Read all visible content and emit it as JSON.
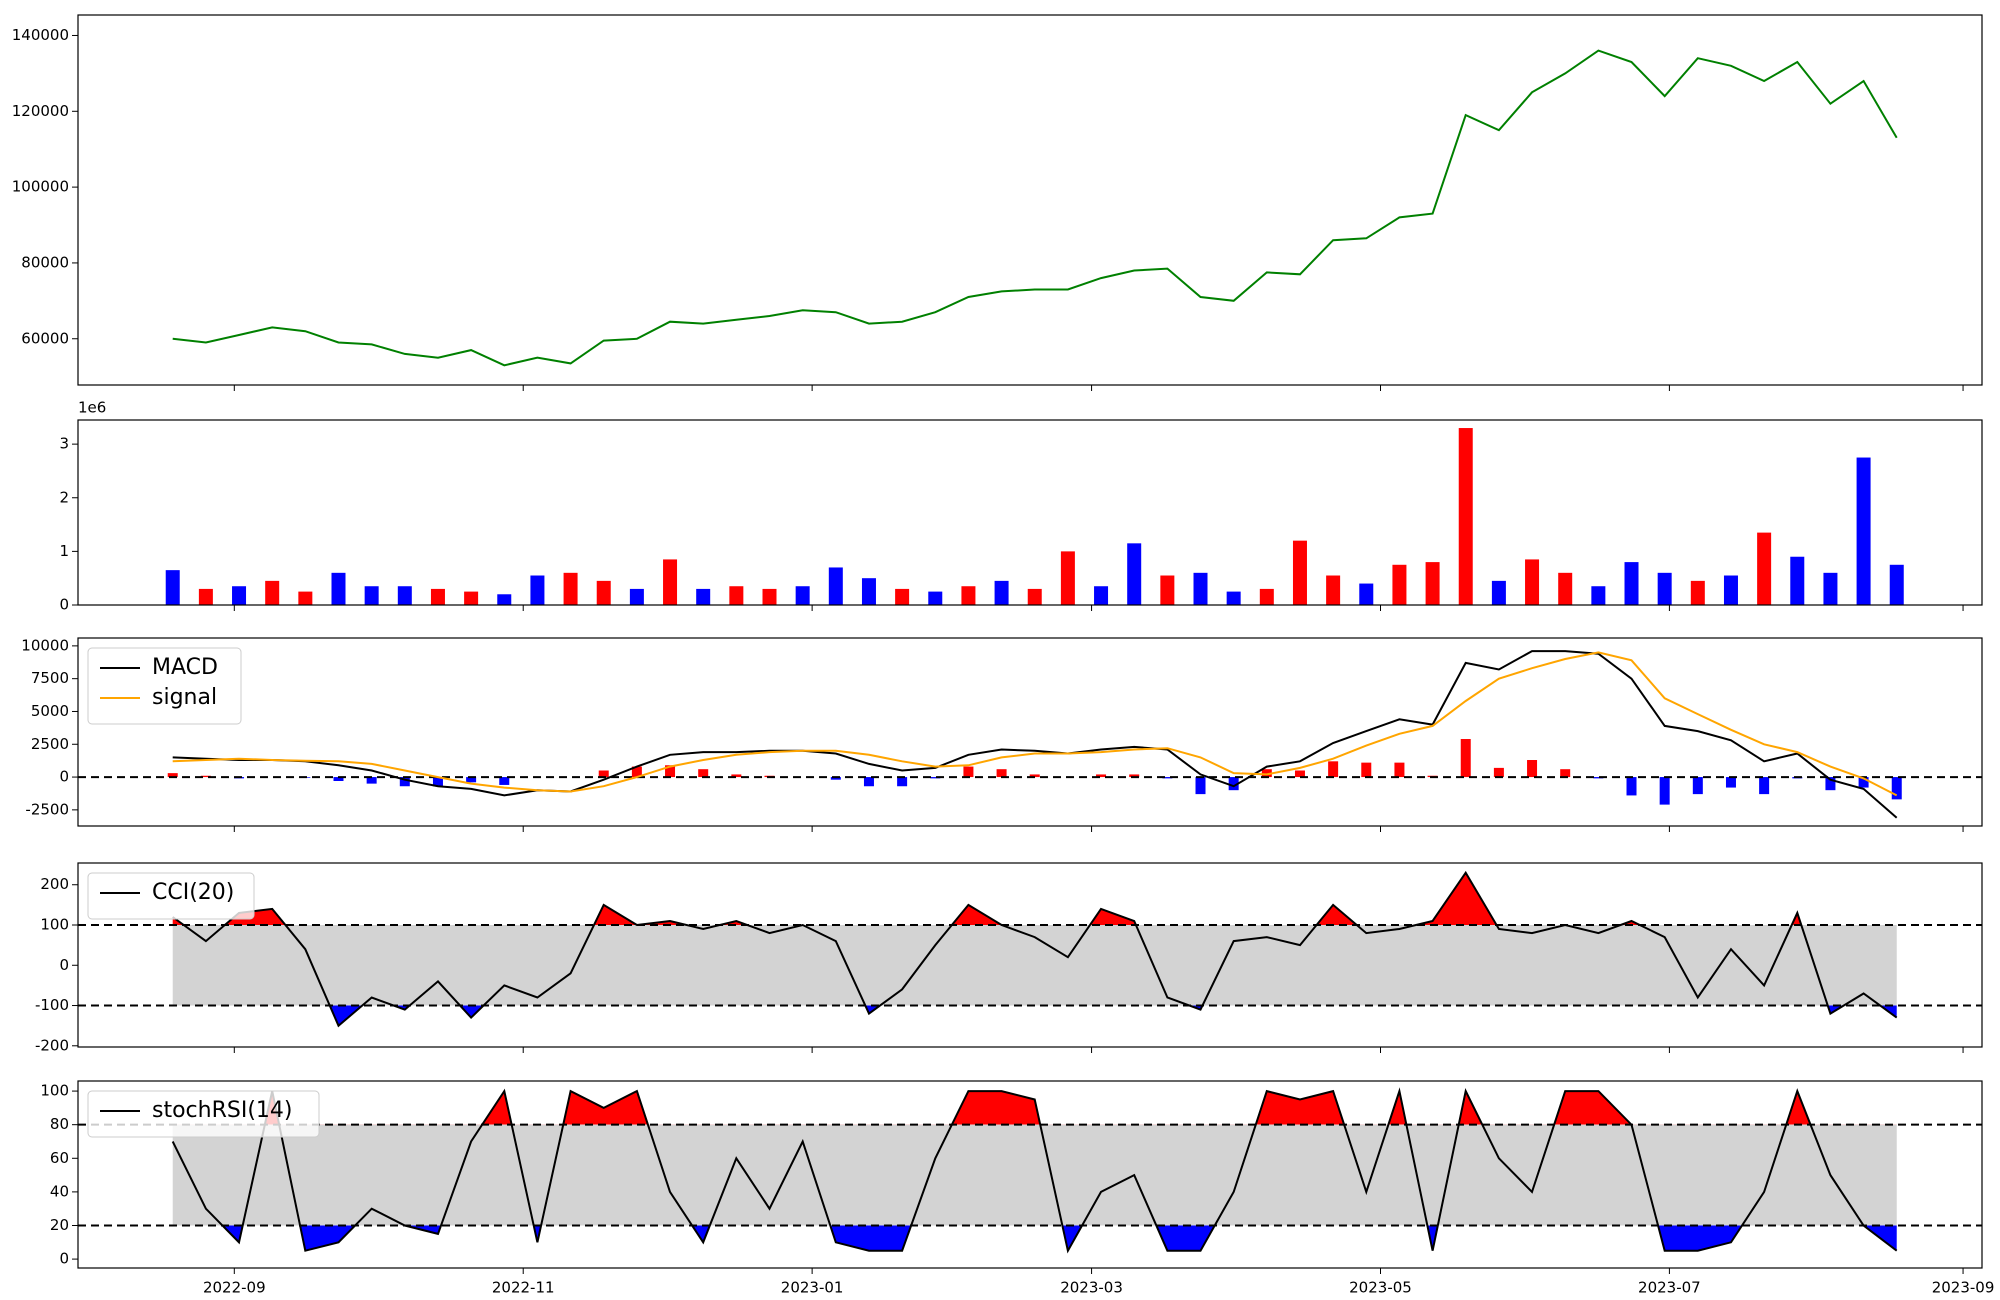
{
  "chart_data": [
    {
      "type": "line",
      "color": "#008000",
      "x": [
        "2022-08-19",
        "2022-08-26",
        "2022-09-02",
        "2022-09-09",
        "2022-09-16",
        "2022-09-23",
        "2022-09-30",
        "2022-10-07",
        "2022-10-14",
        "2022-10-21",
        "2022-10-28",
        "2022-11-04",
        "2022-11-11",
        "2022-11-18",
        "2022-11-25",
        "2022-12-02",
        "2022-12-09",
        "2022-12-16",
        "2022-12-23",
        "2022-12-30",
        "2023-01-06",
        "2023-01-13",
        "2023-01-20",
        "2023-01-27",
        "2023-02-03",
        "2023-02-10",
        "2023-02-17",
        "2023-02-24",
        "2023-03-03",
        "2023-03-10",
        "2023-03-17",
        "2023-03-24",
        "2023-03-31",
        "2023-04-07",
        "2023-04-14",
        "2023-04-21",
        "2023-04-28",
        "2023-05-05",
        "2023-05-12",
        "2023-05-19",
        "2023-05-26",
        "2023-06-02",
        "2023-06-09",
        "2023-06-16",
        "2023-06-23",
        "2023-06-30",
        "2023-07-07",
        "2023-07-14",
        "2023-07-21",
        "2023-07-28",
        "2023-08-04",
        "2023-08-11",
        "2023-08-18"
      ],
      "values": [
        60000,
        59000,
        61000,
        63000,
        62000,
        59000,
        58500,
        56000,
        55000,
        57000,
        53000,
        55000,
        53500,
        59500,
        60000,
        64500,
        64000,
        65000,
        66000,
        67500,
        67000,
        64000,
        64500,
        67000,
        71000,
        72500,
        73000,
        73000,
        76000,
        78000,
        78500,
        71000,
        70000,
        77500,
        77000,
        86000,
        86500,
        92000,
        93000,
        119000,
        115000,
        125000,
        130000,
        136000,
        133000,
        124000,
        134000,
        132000,
        128000,
        133000,
        122000,
        128000,
        113000
      ],
      "xlim": [
        "2022-07-30",
        "2023-09-05"
      ],
      "ylim": [
        47800,
        145400
      ],
      "yticks": [
        60000,
        80000,
        100000,
        120000,
        140000
      ]
    },
    {
      "type": "bar",
      "offset_text": "1e6",
      "x": [
        "2022-08-19",
        "2022-08-26",
        "2022-09-02",
        "2022-09-09",
        "2022-09-16",
        "2022-09-23",
        "2022-09-30",
        "2022-10-07",
        "2022-10-14",
        "2022-10-21",
        "2022-10-28",
        "2022-11-04",
        "2022-11-11",
        "2022-11-18",
        "2022-11-25",
        "2022-12-02",
        "2022-12-09",
        "2022-12-16",
        "2022-12-23",
        "2022-12-30",
        "2023-01-06",
        "2023-01-13",
        "2023-01-20",
        "2023-01-27",
        "2023-02-03",
        "2023-02-10",
        "2023-02-17",
        "2023-02-24",
        "2023-03-03",
        "2023-03-10",
        "2023-03-17",
        "2023-03-24",
        "2023-03-31",
        "2023-04-07",
        "2023-04-14",
        "2023-04-21",
        "2023-04-28",
        "2023-05-05",
        "2023-05-12",
        "2023-05-19",
        "2023-05-26",
        "2023-06-02",
        "2023-06-09",
        "2023-06-16",
        "2023-06-23",
        "2023-06-30",
        "2023-07-07",
        "2023-07-14",
        "2023-07-21",
        "2023-07-28",
        "2023-08-04",
        "2023-08-11",
        "2023-08-18"
      ],
      "values": [
        0.65,
        0.3,
        0.35,
        0.45,
        0.25,
        0.6,
        0.35,
        0.35,
        0.3,
        0.25,
        0.2,
        0.55,
        0.6,
        0.45,
        0.3,
        0.85,
        0.3,
        0.35,
        0.3,
        0.35,
        0.7,
        0.5,
        0.3,
        0.25,
        0.35,
        0.45,
        0.3,
        1.0,
        0.35,
        1.15,
        0.55,
        0.6,
        0.25,
        0.3,
        1.2,
        0.55,
        0.4,
        0.75,
        0.8,
        3.3,
        0.45,
        0.85,
        0.6,
        0.35,
        0.8,
        0.6,
        0.45,
        0.55,
        1.35,
        0.9,
        0.6,
        2.75,
        0.75
      ],
      "colors": [
        "#0000ff",
        "#ff0000",
        "#0000ff",
        "#ff0000",
        "#ff0000",
        "#0000ff",
        "#0000ff",
        "#0000ff",
        "#ff0000",
        "#ff0000",
        "#0000ff",
        "#0000ff",
        "#ff0000",
        "#ff0000",
        "#0000ff",
        "#ff0000",
        "#0000ff",
        "#ff0000",
        "#ff0000",
        "#0000ff",
        "#0000ff",
        "#0000ff",
        "#ff0000",
        "#0000ff",
        "#ff0000",
        "#0000ff",
        "#ff0000",
        "#ff0000",
        "#0000ff",
        "#0000ff",
        "#ff0000",
        "#0000ff",
        "#0000ff",
        "#ff0000",
        "#ff0000",
        "#ff0000",
        "#0000ff",
        "#ff0000",
        "#ff0000",
        "#ff0000",
        "#0000ff",
        "#ff0000",
        "#ff0000",
        "#0000ff",
        "#0000ff",
        "#0000ff",
        "#ff0000",
        "#0000ff",
        "#ff0000",
        "#0000ff",
        "#0000ff",
        "#0000ff",
        "#0000ff"
      ],
      "xlim": [
        "2022-07-30",
        "2023-09-05"
      ],
      "ylim": [
        0,
        3.45
      ],
      "yticks": [
        0,
        1,
        2,
        3
      ]
    },
    {
      "type": "macd",
      "legend": "upper left",
      "zero_line": 0,
      "x": [
        "2022-08-19",
        "2022-08-26",
        "2022-09-02",
        "2022-09-09",
        "2022-09-16",
        "2022-09-23",
        "2022-09-30",
        "2022-10-07",
        "2022-10-14",
        "2022-10-21",
        "2022-10-28",
        "2022-11-04",
        "2022-11-11",
        "2022-11-18",
        "2022-11-25",
        "2022-12-02",
        "2022-12-09",
        "2022-12-16",
        "2022-12-23",
        "2022-12-30",
        "2023-01-06",
        "2023-01-13",
        "2023-01-20",
        "2023-01-27",
        "2023-02-03",
        "2023-02-10",
        "2023-02-17",
        "2023-02-24",
        "2023-03-03",
        "2023-03-10",
        "2023-03-17",
        "2023-03-24",
        "2023-03-31",
        "2023-04-07",
        "2023-04-14",
        "2023-04-21",
        "2023-04-28",
        "2023-05-05",
        "2023-05-12",
        "2023-05-19",
        "2023-05-26",
        "2023-06-02",
        "2023-06-09",
        "2023-06-16",
        "2023-06-23",
        "2023-06-30",
        "2023-07-07",
        "2023-07-14",
        "2023-07-21",
        "2023-07-28",
        "2023-08-04",
        "2023-08-11",
        "2023-08-18"
      ],
      "series": [
        {
          "name": "MACD",
          "color": "#000000",
          "values": [
            1500,
            1400,
            1300,
            1300,
            1200,
            900,
            500,
            -200,
            -700,
            -900,
            -1400,
            -1000,
            -1100,
            -200,
            800,
            1700,
            1900,
            1900,
            2000,
            2000,
            1800,
            1000,
            500,
            700,
            1700,
            2100,
            2000,
            1800,
            2100,
            2300,
            2100,
            200,
            -700,
            800,
            1200,
            2600,
            3500,
            4400,
            4000,
            8700,
            8200,
            9600,
            9600,
            9400,
            7500,
            3900,
            3500,
            2800,
            1200,
            1800,
            -200,
            -900,
            -3100
          ]
        },
        {
          "name": "signal",
          "color": "#ffa500",
          "values": [
            1200,
            1300,
            1400,
            1300,
            1250,
            1200,
            1000,
            500,
            0,
            -500,
            -800,
            -1000,
            -1100,
            -700,
            0,
            800,
            1300,
            1700,
            1900,
            2000,
            2000,
            1700,
            1200,
            800,
            900,
            1500,
            1800,
            1800,
            1900,
            2100,
            2200,
            1500,
            300,
            200,
            700,
            1400,
            2400,
            3300,
            3900,
            5800,
            7500,
            8300,
            9000,
            9500,
            8900,
            6000,
            4800,
            3600,
            2500,
            1900,
            800,
            -100,
            -1400
          ]
        }
      ],
      "histogram": {
        "pos_color": "#ff0000",
        "neg_color": "#0000ff",
        "values": [
          300,
          100,
          -100,
          0,
          -50,
          -300,
          -500,
          -700,
          -700,
          -400,
          -600,
          0,
          0,
          500,
          800,
          900,
          600,
          200,
          100,
          0,
          -200,
          -700,
          -700,
          -100,
          800,
          600,
          200,
          0,
          200,
          200,
          -100,
          -1300,
          -1000,
          600,
          500,
          1200,
          1100,
          1100,
          100,
          2900,
          700,
          1300,
          600,
          -100,
          -1400,
          -2100,
          -1300,
          -800,
          -1300,
          -100,
          -1000,
          -800,
          -1700
        ]
      },
      "xlim": [
        "2022-07-30",
        "2023-09-05"
      ],
      "ylim": [
        -3730,
        10600
      ],
      "yticks": [
        -2500,
        0,
        2500,
        5000,
        7500,
        10000
      ]
    },
    {
      "type": "band",
      "legend": "upper left",
      "thresholds": [
        -100,
        100
      ],
      "band_color": "#d3d3d3",
      "above_color": "#ff0000",
      "below_color": "#0000ff",
      "x": [
        "2022-08-19",
        "2022-08-26",
        "2022-09-02",
        "2022-09-09",
        "2022-09-16",
        "2022-09-23",
        "2022-09-30",
        "2022-10-07",
        "2022-10-14",
        "2022-10-21",
        "2022-10-28",
        "2022-11-04",
        "2022-11-11",
        "2022-11-18",
        "2022-11-25",
        "2022-12-02",
        "2022-12-09",
        "2022-12-16",
        "2022-12-23",
        "2022-12-30",
        "2023-01-06",
        "2023-01-13",
        "2023-01-20",
        "2023-01-27",
        "2023-02-03",
        "2023-02-10",
        "2023-02-17",
        "2023-02-24",
        "2023-03-03",
        "2023-03-10",
        "2023-03-17",
        "2023-03-24",
        "2023-03-31",
        "2023-04-07",
        "2023-04-14",
        "2023-04-21",
        "2023-04-28",
        "2023-05-05",
        "2023-05-12",
        "2023-05-19",
        "2023-05-26",
        "2023-06-02",
        "2023-06-09",
        "2023-06-16",
        "2023-06-23",
        "2023-06-30",
        "2023-07-07",
        "2023-07-14",
        "2023-07-21",
        "2023-07-28",
        "2023-08-04",
        "2023-08-11",
        "2023-08-18"
      ],
      "series": [
        {
          "name": "CCI(20)",
          "color": "#000000",
          "values": [
            120,
            60,
            130,
            140,
            40,
            -150,
            -80,
            -110,
            -40,
            -130,
            -50,
            -80,
            -20,
            150,
            100,
            110,
            90,
            110,
            80,
            100,
            60,
            -120,
            -60,
            50,
            150,
            100,
            70,
            20,
            140,
            110,
            -80,
            -110,
            60,
            70,
            50,
            150,
            80,
            90,
            110,
            230,
            90,
            80,
            100,
            80,
            110,
            70,
            -80,
            40,
            -50,
            130,
            -120,
            -70,
            -130
          ]
        }
      ],
      "xlim": [
        "2022-07-30",
        "2023-09-05"
      ],
      "ylim": [
        -203,
        254
      ],
      "yticks": [
        -200,
        -100,
        0,
        100,
        200
      ]
    },
    {
      "type": "band",
      "legend": "upper left",
      "thresholds": [
        20,
        80
      ],
      "band_color": "#d3d3d3",
      "above_color": "#ff0000",
      "below_color": "#0000ff",
      "x": [
        "2022-08-19",
        "2022-08-26",
        "2022-09-02",
        "2022-09-09",
        "2022-09-16",
        "2022-09-23",
        "2022-09-30",
        "2022-10-07",
        "2022-10-14",
        "2022-10-21",
        "2022-10-28",
        "2022-11-04",
        "2022-11-11",
        "2022-11-18",
        "2022-11-25",
        "2022-12-02",
        "2022-12-09",
        "2022-12-16",
        "2022-12-23",
        "2022-12-30",
        "2023-01-06",
        "2023-01-13",
        "2023-01-20",
        "2023-01-27",
        "2023-02-03",
        "2023-02-10",
        "2023-02-17",
        "2023-02-24",
        "2023-03-03",
        "2023-03-10",
        "2023-03-17",
        "2023-03-24",
        "2023-03-31",
        "2023-04-07",
        "2023-04-14",
        "2023-04-21",
        "2023-04-28",
        "2023-05-05",
        "2023-05-12",
        "2023-05-19",
        "2023-05-26",
        "2023-06-02",
        "2023-06-09",
        "2023-06-16",
        "2023-06-23",
        "2023-06-30",
        "2023-07-07",
        "2023-07-14",
        "2023-07-21",
        "2023-07-28",
        "2023-08-04",
        "2023-08-11",
        "2023-08-18"
      ],
      "series": [
        {
          "name": "stochRSI(14)",
          "color": "#000000",
          "values": [
            70,
            30,
            10,
            100,
            5,
            10,
            30,
            20,
            15,
            70,
            100,
            10,
            100,
            90,
            100,
            40,
            10,
            60,
            30,
            70,
            10,
            5,
            5,
            60,
            100,
            100,
            95,
            5,
            40,
            50,
            5,
            5,
            40,
            100,
            95,
            100,
            40,
            100,
            5,
            100,
            60,
            40,
            100,
            100,
            80,
            5,
            5,
            10,
            40,
            100,
            50,
            20,
            5
          ]
        }
      ],
      "xlim": [
        "2022-07-30",
        "2023-09-05"
      ],
      "ylim": [
        -5.3,
        106
      ],
      "yticks": [
        0,
        20,
        40,
        60,
        80,
        100
      ],
      "xticks": [
        {
          "value": "2022-09-01",
          "label": "2022-09"
        },
        {
          "value": "2022-11-01",
          "label": "2022-11"
        },
        {
          "value": "2023-01-01",
          "label": "2023-01"
        },
        {
          "value": "2023-03-01",
          "label": "2023-03"
        },
        {
          "value": "2023-05-01",
          "label": "2023-05"
        },
        {
          "value": "2023-07-01",
          "label": "2023-07"
        },
        {
          "value": "2023-09-01",
          "label": "2023-09"
        }
      ]
    }
  ]
}
